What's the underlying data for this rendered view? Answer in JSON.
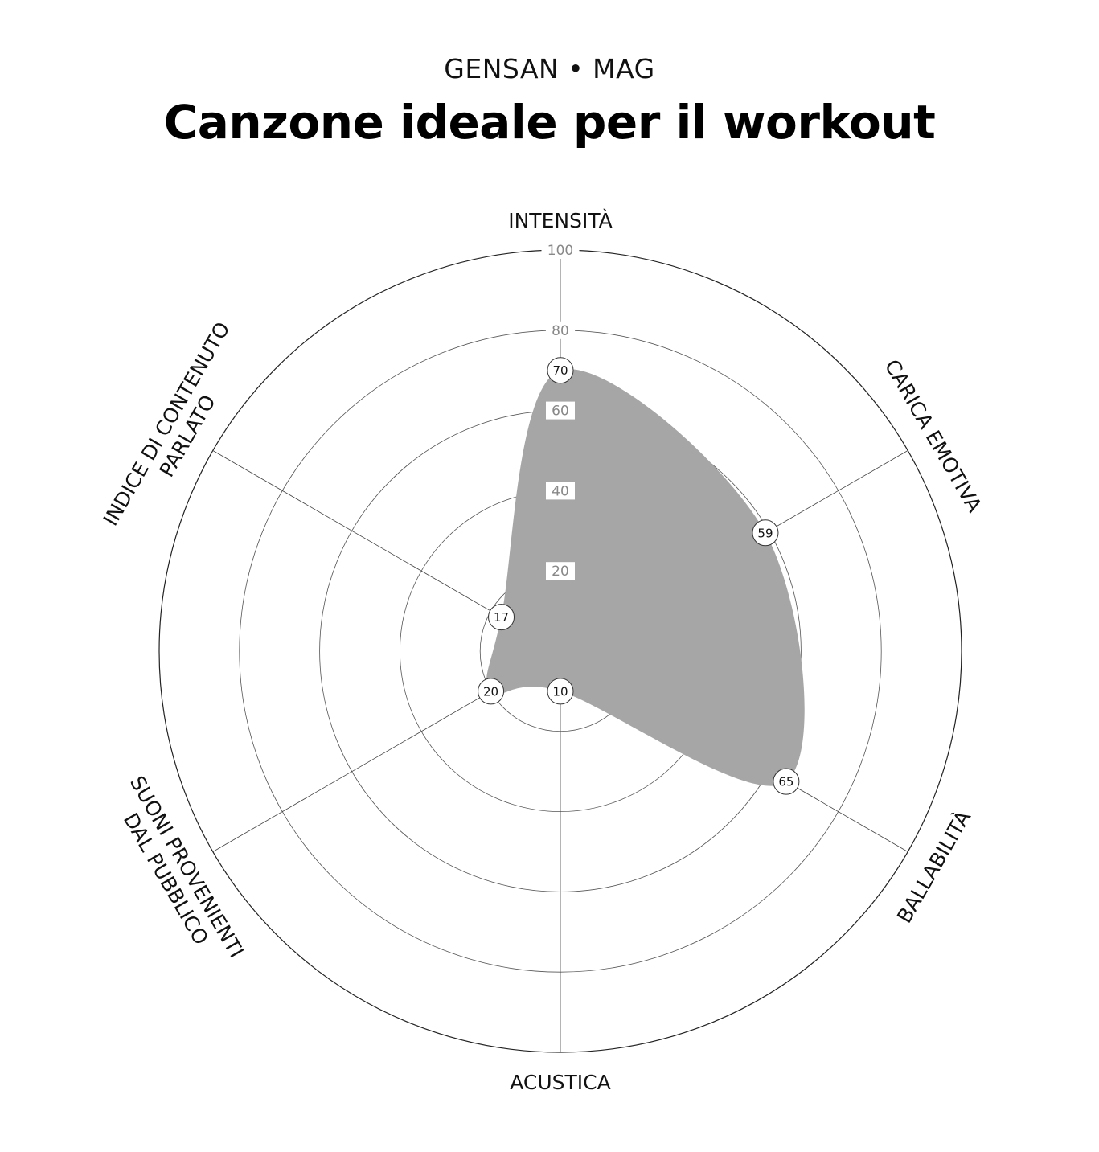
{
  "header": {
    "brand": "GENSAN • MAG",
    "title": "Canzone ideale per il workout"
  },
  "chart_data": {
    "type": "radar",
    "title": "Canzone ideale per il workout",
    "rlim": [
      0,
      100
    ],
    "ticks": [
      20,
      40,
      60,
      80,
      100
    ],
    "grid": true,
    "fill_color": "#a6a6a6",
    "axes": [
      {
        "label": [
          "CARICA EMOTIVA"
        ],
        "value": 59
      },
      {
        "label": [
          "BALLABILITÀ"
        ],
        "value": 65
      },
      {
        "label": [
          "ACUSTICA"
        ],
        "value": 10
      },
      {
        "label": [
          "SUONI PROVENIENTI",
          "DAL PUBBLICO"
        ],
        "value": 20
      },
      {
        "label": [
          "INDICE DI CONTENUTO",
          "PARLATO"
        ],
        "value": 17
      },
      {
        "label": [
          "INTENSITÀ"
        ],
        "value": 70
      }
    ]
  }
}
